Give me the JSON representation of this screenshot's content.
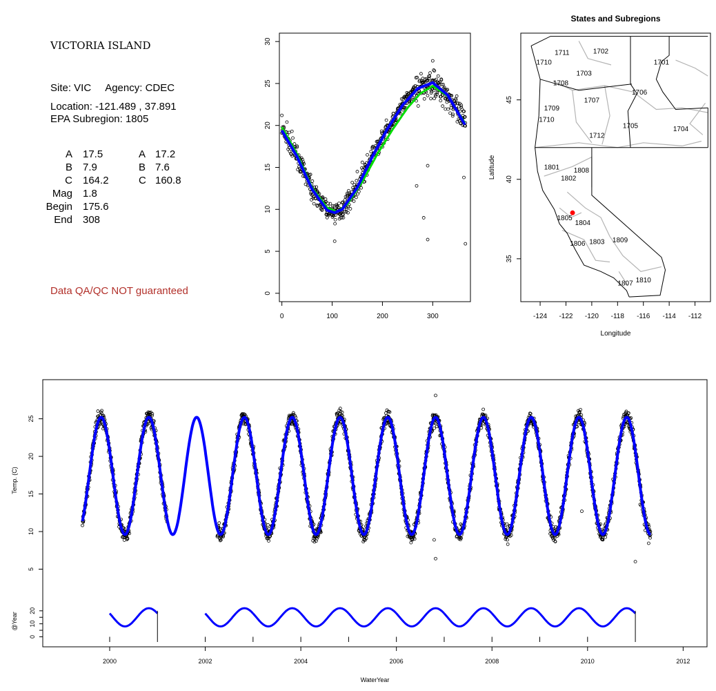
{
  "info": {
    "site_title": "VICTORIA ISLAND",
    "site_line": "Site: VIC     Agency: CDEC",
    "location_line": "Location: -121.489 , 37.891",
    "subregion_line": "EPA Subregion: 1805",
    "coefficients": {
      "left": [
        {
          "label": "A",
          "value": "17.5"
        },
        {
          "label": "B",
          "value": "7.9"
        },
        {
          "label": "C",
          "value": "164.2"
        },
        {
          "label": "Mag",
          "value": "1.8"
        },
        {
          "label": "Begin",
          "value": "175.6"
        },
        {
          "label": "End",
          "value": "308"
        }
      ],
      "right": [
        {
          "label": "A",
          "value": "17.2"
        },
        {
          "label": "B",
          "value": "7.6"
        },
        {
          "label": "C",
          "value": "160.8"
        }
      ]
    },
    "qa_note": "Data QA/QC NOT guaranteed"
  },
  "chart_data": [
    {
      "id": "seasonal-fit",
      "type": "scatter",
      "title": "",
      "xlabel": "",
      "ylabel": "",
      "xlim": [
        -5,
        375
      ],
      "ylim": [
        -1,
        31
      ],
      "x_ticks": [
        0,
        100,
        200,
        300
      ],
      "y_ticks": [
        0,
        5,
        10,
        15,
        20,
        25,
        30
      ],
      "grid": false,
      "observations": {
        "description_shape": "daily water temperature by day of water year",
        "points": [
          [
            0,
            21.2
          ],
          [
            10,
            20.4
          ],
          [
            20,
            19.3
          ],
          [
            30,
            17.4
          ],
          [
            40,
            15.3
          ],
          [
            50,
            13.4
          ],
          [
            60,
            11.7
          ],
          [
            70,
            10.5
          ],
          [
            80,
            9.9
          ],
          [
            90,
            9.6
          ],
          [
            100,
            9.3
          ],
          [
            105,
            6.2
          ],
          [
            110,
            9.9
          ],
          [
            120,
            10.8
          ],
          [
            130,
            11.9
          ],
          [
            140,
            13.2
          ],
          [
            150,
            14.5
          ],
          [
            160,
            15.6
          ],
          [
            170,
            16.5
          ],
          [
            180,
            17.4
          ],
          [
            190,
            18.1
          ],
          [
            200,
            19.0
          ],
          [
            210,
            20.0
          ],
          [
            220,
            21.0
          ],
          [
            230,
            21.9
          ],
          [
            240,
            22.7
          ],
          [
            250,
            23.4
          ],
          [
            260,
            24.0
          ],
          [
            270,
            24.6
          ],
          [
            280,
            25.1
          ],
          [
            290,
            25.4
          ],
          [
            300,
            27.7
          ],
          [
            310,
            24.2
          ],
          [
            320,
            23.6
          ],
          [
            330,
            23.1
          ],
          [
            340,
            22.5
          ],
          [
            350,
            21.7
          ],
          [
            360,
            20.9
          ],
          [
            365,
            20.3
          ],
          [
            268,
            12.8
          ],
          [
            282,
            9.0
          ],
          [
            290,
            6.4
          ],
          [
            290,
            15.2
          ],
          [
            362,
            13.8
          ],
          [
            365,
            5.9
          ]
        ]
      },
      "series": [
        {
          "color": "#0000ff",
          "fit": [
            [
              0,
              19.4
            ],
            [
              30,
              16.3
            ],
            [
              60,
              12.4
            ],
            [
              90,
              9.9
            ],
            [
              105,
              9.6
            ],
            [
              120,
              10.0
            ],
            [
              150,
              12.6
            ],
            [
              180,
              16.3
            ],
            [
              210,
              19.6
            ],
            [
              240,
              22.4
            ],
            [
              270,
              24.4
            ],
            [
              300,
              25.1
            ],
            [
              330,
              23.6
            ],
            [
              365,
              20.0
            ]
          ]
        },
        {
          "color": "#00dd00",
          "fit": [
            [
              0,
              19.8
            ],
            [
              30,
              16.6
            ],
            [
              60,
              12.6
            ],
            [
              90,
              10.2
            ],
            [
              110,
              9.7
            ],
            [
              130,
              10.6
            ],
            [
              160,
              13.3
            ],
            [
              190,
              16.6
            ],
            [
              220,
              19.5
            ],
            [
              250,
              22.1
            ],
            [
              275,
              23.8
            ],
            [
              300,
              24.7
            ],
            [
              330,
              23.5
            ],
            [
              365,
              20.2
            ]
          ]
        }
      ]
    },
    {
      "id": "subregion-map",
      "type": "map",
      "title": "States and Subregions",
      "xlabel": "Longitude",
      "ylabel": "Latitude",
      "xlim": [
        -125.5,
        -110.8
      ],
      "ylim": [
        32.3,
        49.2
      ],
      "x_ticks": [
        -124,
        -122,
        -120,
        -118,
        -116,
        -114,
        -112
      ],
      "y_ticks": [
        35,
        40,
        45
      ],
      "site_marker": {
        "lon": -121.489,
        "lat": 37.891,
        "color": "#ff0000"
      },
      "region_labels": [
        {
          "label": "1702",
          "lon": -119.3,
          "lat": 48.1
        },
        {
          "label": "1711",
          "lon": -122.3,
          "lat": 48.0
        },
        {
          "label": "1710",
          "lon": -123.7,
          "lat": 47.4
        },
        {
          "label": "1701",
          "lon": -114.6,
          "lat": 47.4
        },
        {
          "label": "1703",
          "lon": -120.6,
          "lat": 46.7
        },
        {
          "label": "1708",
          "lon": -122.4,
          "lat": 46.1
        },
        {
          "label": "1706",
          "lon": -116.3,
          "lat": 45.5
        },
        {
          "label": "1707",
          "lon": -120.0,
          "lat": 45.0
        },
        {
          "label": "1709",
          "lon": -123.1,
          "lat": 44.5
        },
        {
          "label": "1710",
          "lon": -123.5,
          "lat": 43.8
        },
        {
          "label": "1705",
          "lon": -117.0,
          "lat": 43.4
        },
        {
          "label": "1704",
          "lon": -113.1,
          "lat": 43.2
        },
        {
          "label": "1712",
          "lon": -119.6,
          "lat": 42.8
        },
        {
          "label": "1801",
          "lon": -123.1,
          "lat": 40.8
        },
        {
          "label": "1808",
          "lon": -120.8,
          "lat": 40.6
        },
        {
          "label": "1802",
          "lon": -121.8,
          "lat": 40.1
        },
        {
          "label": "1805",
          "lon": -122.1,
          "lat": 37.6
        },
        {
          "label": "1804",
          "lon": -120.7,
          "lat": 37.3
        },
        {
          "label": "1806",
          "lon": -121.1,
          "lat": 36.0
        },
        {
          "label": "1803",
          "lon": -119.6,
          "lat": 36.1
        },
        {
          "label": "1809",
          "lon": -117.8,
          "lat": 36.2
        },
        {
          "label": "1810",
          "lon": -116.0,
          "lat": 33.7
        },
        {
          "label": "1807",
          "lon": -117.4,
          "lat": 33.5
        }
      ]
    },
    {
      "id": "time-series",
      "type": "line",
      "title": "",
      "xlabel": "WaterYear",
      "ylabel": "Temp. (C)",
      "xlim": [
        1998.6,
        2012.5
      ],
      "ylim": [
        2.2,
        30.2
      ],
      "x_ticks": [
        2000,
        2002,
        2004,
        2006,
        2008,
        2010,
        2012
      ],
      "y_ticks": [
        5,
        10,
        15,
        20,
        25
      ],
      "temperature_fit": {
        "color": "#0000ff",
        "start": 1999.43,
        "end": 2011.32,
        "mean": 17.4,
        "amplitude": 7.8,
        "peak_phase": 0.82
      },
      "observations": {
        "missing_span": [
          2001.2,
          2002.25
        ],
        "outliers": [
          [
            2006.82,
            28.1
          ],
          [
            2006.82,
            6.4
          ],
          [
            2006.79,
            8.9
          ],
          [
            2009.88,
            12.7
          ],
          [
            2011.0,
            6.0
          ],
          [
            2011.1,
            13.6
          ]
        ]
      },
      "year_panel": {
        "ylabel": "@Year",
        "y_ticks": [
          0,
          10,
          20
        ],
        "y_tick_labels_extra": [
          5,
          15
        ],
        "ylim": [
          -4,
          30
        ],
        "segments": [
          [
            2000,
            2001
          ],
          [
            2002,
            2003
          ],
          [
            2003,
            2004
          ],
          [
            2004,
            2005
          ],
          [
            2005,
            2006
          ],
          [
            2006,
            2007
          ],
          [
            2007,
            2008
          ],
          [
            2008,
            2009
          ],
          [
            2009,
            2010
          ],
          [
            2010,
            2011
          ]
        ]
      }
    }
  ]
}
